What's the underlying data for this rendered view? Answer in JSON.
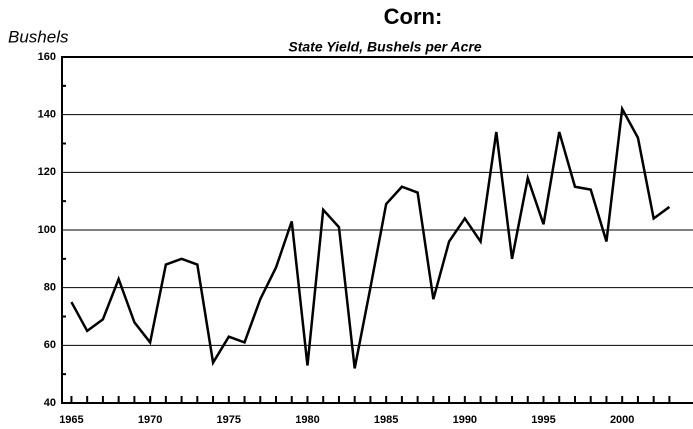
{
  "chart_data": {
    "type": "line",
    "title": "Corn:",
    "subtitle": "State Yield, Bushels per Acre",
    "y_label": "Bushels",
    "x": [
      1965,
      1966,
      1967,
      1968,
      1969,
      1970,
      1971,
      1972,
      1973,
      1974,
      1975,
      1976,
      1977,
      1978,
      1979,
      1980,
      1981,
      1982,
      1983,
      1984,
      1985,
      1986,
      1987,
      1988,
      1989,
      1990,
      1991,
      1992,
      1993,
      1994,
      1995,
      1996,
      1997,
      1998,
      1999,
      2000,
      2001,
      2002,
      2003
    ],
    "series": [
      {
        "name": "Corn",
        "color": "#000000",
        "values": [
          75,
          65,
          69,
          83,
          68,
          61,
          88,
          90,
          88,
          54,
          63,
          61,
          76,
          87,
          103,
          53,
          107,
          101,
          52,
          80,
          109,
          115,
          113,
          76,
          96,
          104,
          96,
          134,
          90,
          118,
          102,
          134,
          115,
          114,
          96,
          142,
          132,
          104,
          108
        ]
      }
    ],
    "xlim": [
      1964.4,
      2004.5
    ],
    "xticks": [
      1965,
      1970,
      1975,
      1980,
      1985,
      1990,
      1995,
      2000
    ],
    "ylim": [
      40,
      160
    ],
    "yticks": [
      40,
      60,
      80,
      100,
      120,
      140,
      160
    ],
    "grid": true
  }
}
